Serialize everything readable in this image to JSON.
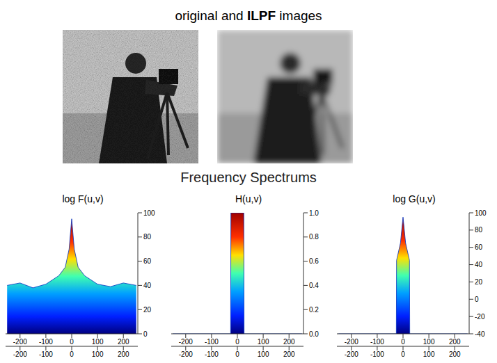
{
  "header": {
    "title": [
      "original and",
      "ILPF",
      "images"
    ]
  },
  "subtitle": "Frequency Spectrums",
  "chart_data": [
    {
      "type": "area",
      "title": "log F(u,v)",
      "x": [
        -250,
        -200,
        -150,
        -100,
        -50,
        -25,
        -10,
        0,
        10,
        25,
        50,
        100,
        150,
        200,
        250
      ],
      "values": [
        40,
        42,
        38,
        41,
        48,
        55,
        70,
        95,
        70,
        55,
        48,
        41,
        39,
        42,
        40
      ],
      "xlim": [
        -256,
        256
      ],
      "xticks": [
        -200,
        -100,
        0,
        100,
        200
      ],
      "x2lim": [
        -256,
        256
      ],
      "x2ticks": [
        -200,
        -100,
        0,
        100,
        200
      ],
      "ylim": [
        0,
        100
      ],
      "yticks": [
        0,
        20,
        40,
        60,
        80,
        100
      ]
    },
    {
      "type": "area",
      "title": "H(u,v)",
      "x": [
        -250,
        -26,
        -25,
        25,
        26,
        250
      ],
      "values": [
        0,
        0,
        1,
        1,
        0,
        0
      ],
      "xlim": [
        -256,
        256
      ],
      "xticks": [
        -200,
        -100,
        0,
        100,
        200
      ],
      "x2lim": [
        -256,
        256
      ],
      "x2ticks": [
        -200,
        -100,
        0,
        100,
        200
      ],
      "ylim": [
        0,
        1
      ],
      "yticks": [
        {
          "value": 0,
          "label": "0.0"
        },
        {
          "value": 0.2,
          "label": "0.2"
        },
        {
          "value": 0.4,
          "label": "0.4"
        },
        {
          "value": 0.6,
          "label": "0.6"
        },
        {
          "value": 0.8,
          "label": "0.8"
        },
        {
          "value": 1,
          "label": "1.0"
        }
      ]
    },
    {
      "type": "area",
      "title": "log G(u,v)",
      "x": [
        -250,
        -26,
        -25,
        -10,
        0,
        10,
        25,
        26,
        250
      ],
      "values": [
        -40,
        -40,
        45,
        65,
        95,
        65,
        45,
        -40,
        -40
      ],
      "xlim": [
        -256,
        256
      ],
      "xticks": [
        -200,
        -100,
        0,
        100,
        200
      ],
      "x2lim": [
        -256,
        256
      ],
      "x2ticks": [
        -200,
        -100,
        0,
        100,
        200
      ],
      "ylim": [
        -40,
        100
      ],
      "yticks": [
        -40,
        -20,
        0,
        20,
        40,
        60,
        80,
        100
      ]
    }
  ]
}
